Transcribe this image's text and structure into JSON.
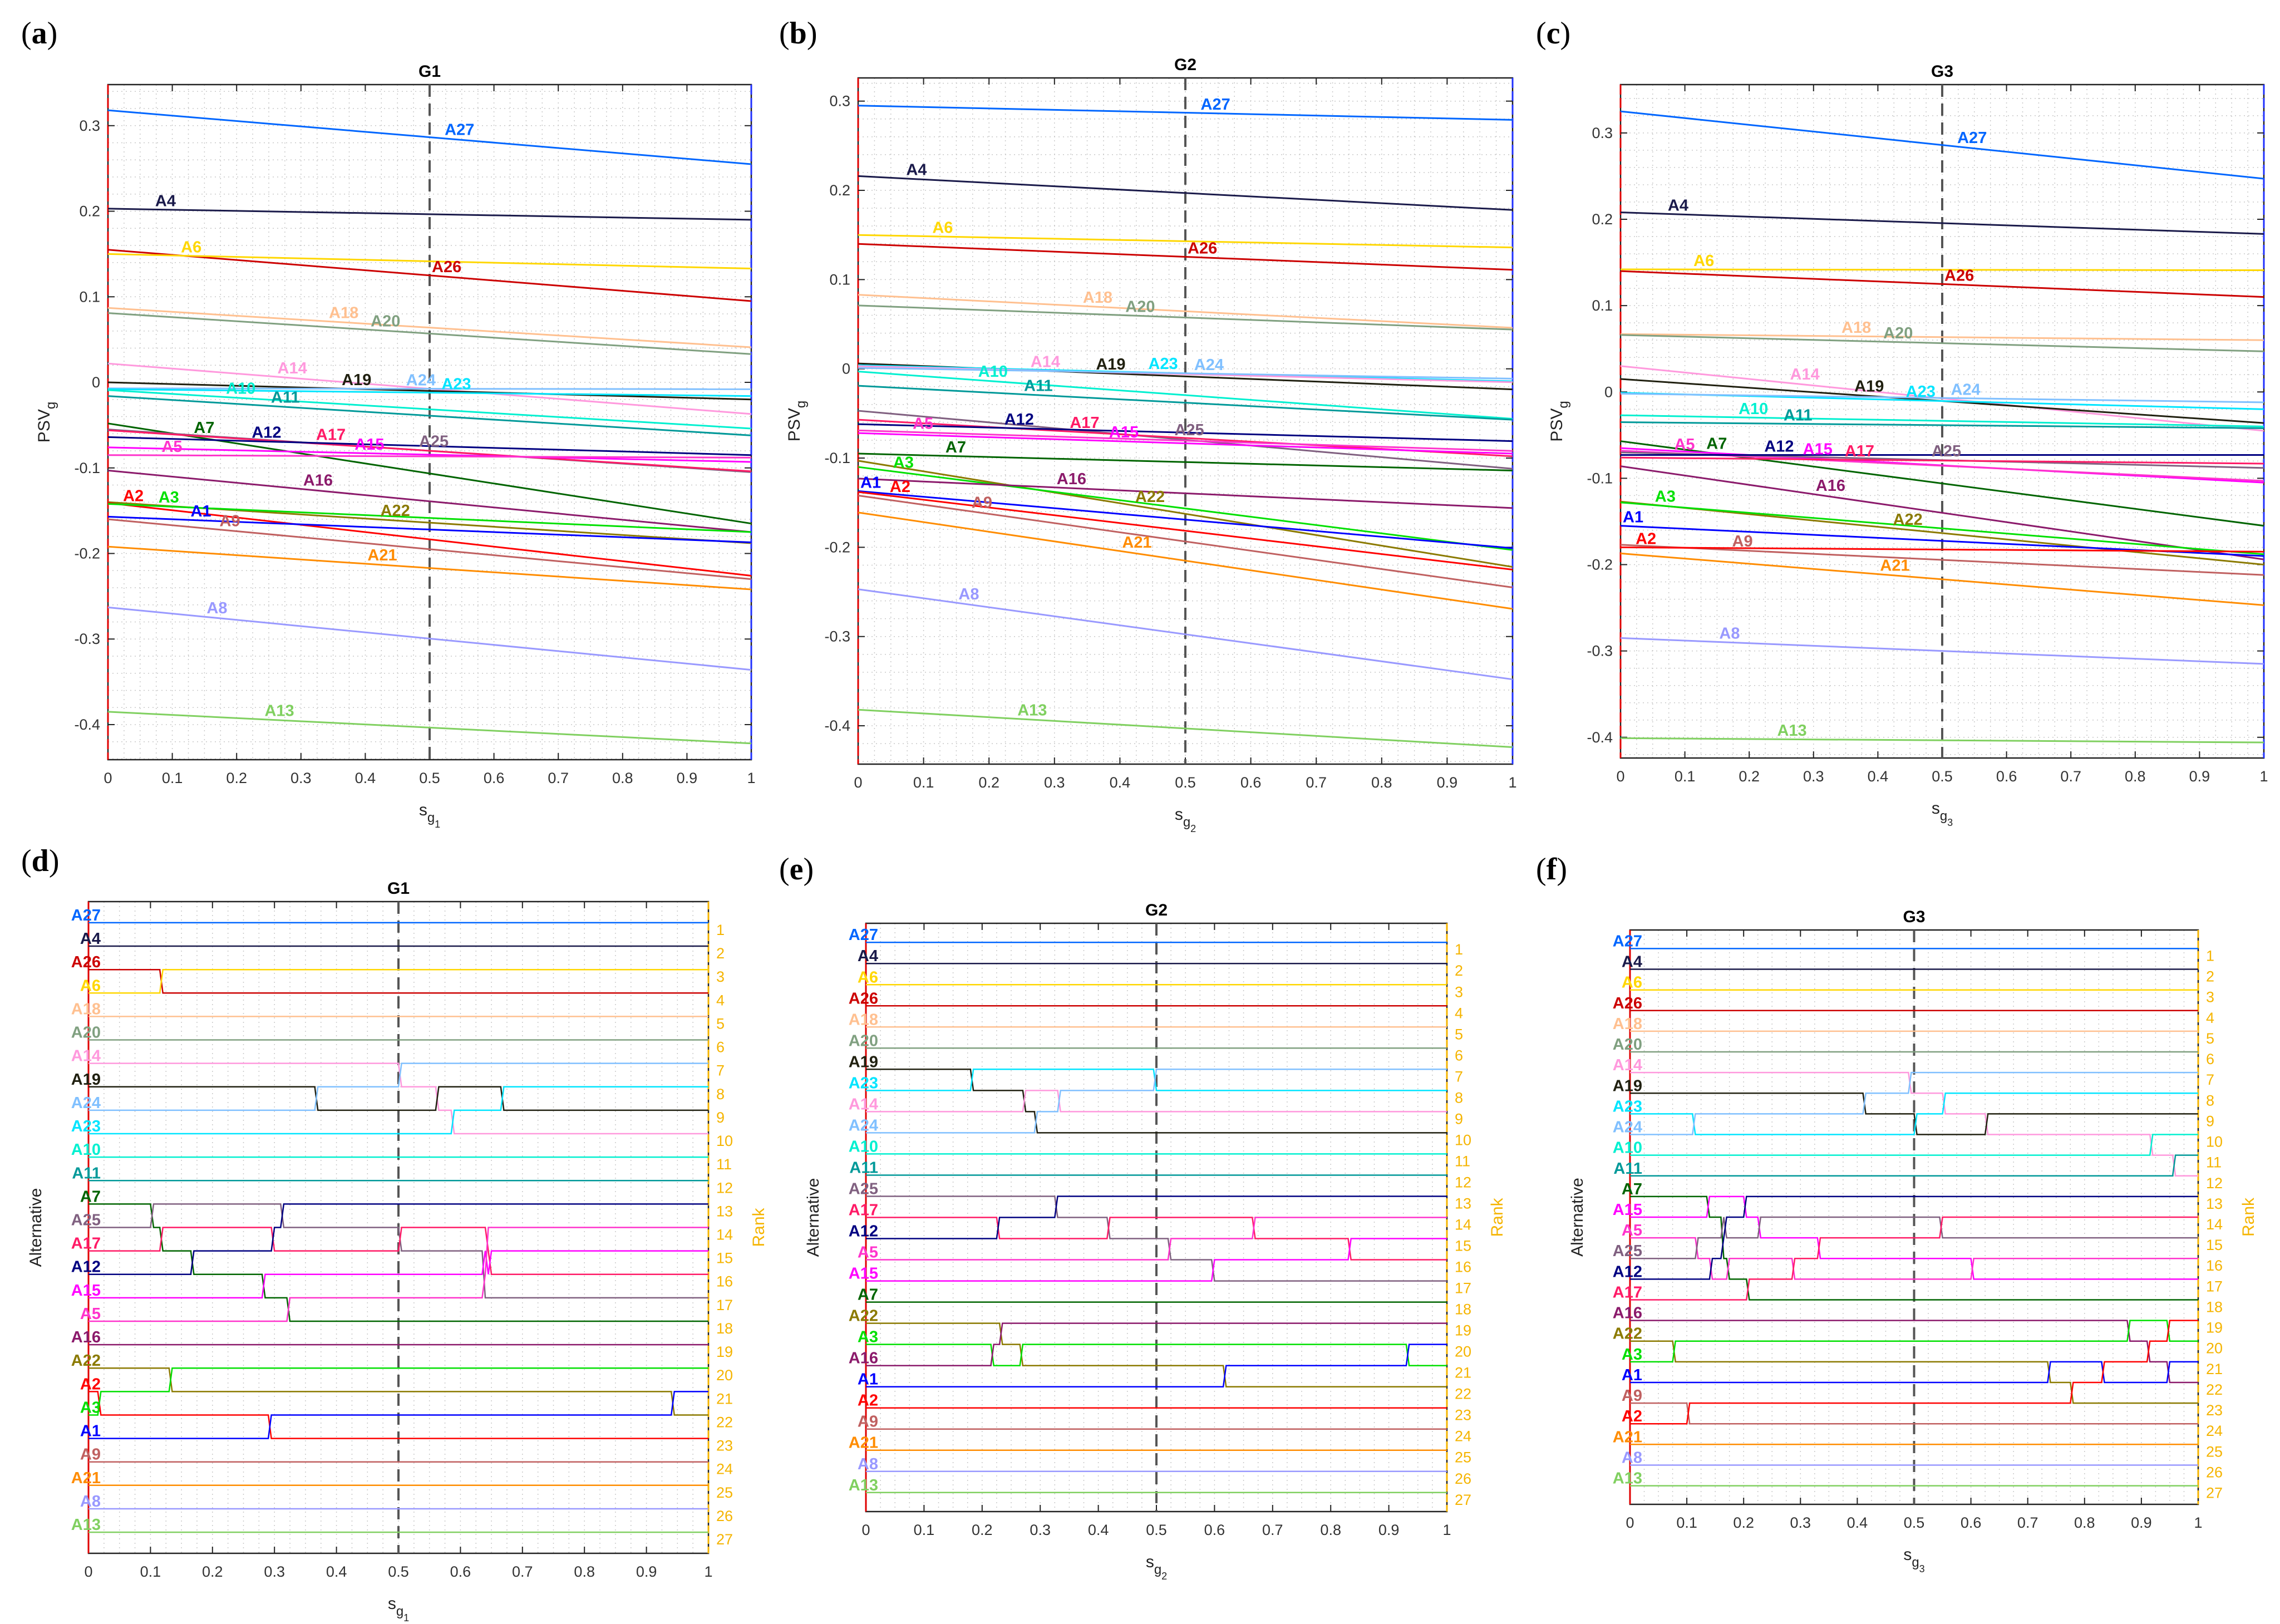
{
  "panel_labels": [
    {
      "open": "(",
      "letter": "a",
      "close": ")"
    },
    {
      "open": "(",
      "letter": "b",
      "close": ")"
    },
    {
      "open": "(",
      "letter": "c",
      "close": ")"
    },
    {
      "open": "(",
      "letter": "d",
      "close": ")"
    },
    {
      "open": "(",
      "letter": "e",
      "close": ")"
    },
    {
      "open": "(",
      "letter": "f",
      "close": ")"
    }
  ],
  "colors": {
    "A1": "#0000ff",
    "A2": "#ff0000",
    "A3": "#00e000",
    "A4": "#1a1a4a",
    "A5": "#ff33cc",
    "A6": "#ffd700",
    "A7": "#006400",
    "A8": "#9999ff",
    "A9": "#c06060",
    "A10": "#00f0d0",
    "A11": "#009999",
    "A12": "#000080",
    "A13": "#80d060",
    "A14": "#ff99dd",
    "A15": "#ff00ff",
    "A16": "#8b1a6b",
    "A17": "#ff1a66",
    "A18": "#ffc090",
    "A19": "#202010",
    "A20": "#80a080",
    "A21": "#ff8c00",
    "A22": "#8b7a00",
    "A23": "#00e5ff",
    "A24": "#80c0ff",
    "A25": "#806080",
    "A26": "#cc0000",
    "A27": "#0066ff",
    "reference_line": "#555555",
    "rank_axis": "#f5b400"
  },
  "chart_data": [
    {
      "type": "line",
      "title": "G1",
      "xlabel": {
        "base": "s",
        "sub": "g",
        "subsub": "1"
      },
      "ylabel": {
        "base": "PSV",
        "sub": "g"
      },
      "xlim": [
        0,
        1
      ],
      "ylim": [
        -0.441,
        0.348
      ],
      "reference_s": 0.5,
      "grid": true,
      "xticks": [
        "0",
        "0.1",
        "0.2",
        "0.3",
        "0.4",
        "0.5",
        "0.6",
        "0.7",
        "0.8",
        "0.9",
        "1"
      ],
      "yticks": [
        "-0.4",
        "-0.3",
        "-0.2",
        "-0.1",
        "0",
        "0.1",
        "0.2",
        "0.3"
      ],
      "x": [
        0,
        1
      ],
      "series": [
        {
          "name": "A27",
          "values": [
            0.318,
            0.255
          ],
          "label_s": 0.52
        },
        {
          "name": "A4",
          "values": [
            0.203,
            0.19
          ],
          "label_s": 0.07
        },
        {
          "name": "A26",
          "values": [
            0.155,
            0.095
          ],
          "label_s": 0.5
        },
        {
          "name": "A6",
          "values": [
            0.15,
            0.133
          ],
          "label_s": 0.11
        },
        {
          "name": "A18",
          "values": [
            0.087,
            0.041
          ],
          "label_s": 0.34
        },
        {
          "name": "A20",
          "values": [
            0.081,
            0.033
          ],
          "label_s": 0.38
        },
        {
          "name": "A14",
          "values": [
            0.022,
            -0.037
          ],
          "label_s": 0.26
        },
        {
          "name": "A19",
          "values": [
            0.0,
            -0.02
          ],
          "label_s": 0.36
        },
        {
          "name": "A24",
          "values": [
            -0.007,
            -0.008
          ],
          "label_s": 0.46
        },
        {
          "name": "A23",
          "values": [
            -0.008,
            -0.016
          ],
          "label_s": 0.44
        },
        {
          "name": "A10",
          "values": [
            -0.009,
            -0.054
          ],
          "label_s": 0.18
        },
        {
          "name": "A11",
          "values": [
            -0.016,
            -0.062
          ],
          "label_s": 0.2
        },
        {
          "name": "A7",
          "values": [
            -0.048,
            -0.165
          ],
          "label_s": 0.13
        },
        {
          "name": "A25",
          "values": [
            -0.055,
            -0.105
          ],
          "label_s": 0.48
        },
        {
          "name": "A17",
          "values": [
            -0.056,
            -0.104
          ],
          "label_s": 0.32
        },
        {
          "name": "A12",
          "values": [
            -0.064,
            -0.085
          ],
          "label_s": 0.22
        },
        {
          "name": "A15",
          "values": [
            -0.076,
            -0.093
          ],
          "label_s": 0.28
        },
        {
          "name": "A5",
          "values": [
            -0.085,
            -0.088
          ],
          "label_s": 0.08
        },
        {
          "name": "A16",
          "values": [
            -0.103,
            -0.175
          ],
          "label_s": 0.3
        },
        {
          "name": "A22",
          "values": [
            -0.14,
            -0.188
          ],
          "label_s": 0.42
        },
        {
          "name": "A2",
          "values": [
            -0.141,
            -0.226
          ],
          "label_s": 0.02
        },
        {
          "name": "A3",
          "values": [
            -0.142,
            -0.175
          ],
          "label_s": 0.05
        },
        {
          "name": "A1",
          "values": [
            -0.157,
            -0.187
          ],
          "label_s": 0.0
        },
        {
          "name": "A9",
          "values": [
            -0.16,
            -0.23
          ],
          "label_s": 0.17
        },
        {
          "name": "A21",
          "values": [
            -0.192,
            -0.242
          ],
          "label_s": 0.4
        },
        {
          "name": "A8",
          "values": [
            -0.263,
            -0.336
          ],
          "label_s": 0.15
        },
        {
          "name": "A13",
          "values": [
            -0.385,
            -0.422
          ],
          "label_s": 0.24
        }
      ]
    },
    {
      "type": "line",
      "title": "G2",
      "xlabel": {
        "base": "s",
        "sub": "g",
        "subsub": "2"
      },
      "ylabel": {
        "base": "PSV",
        "sub": "g"
      },
      "xlim": [
        0,
        1
      ],
      "ylim": [
        -0.443,
        0.326
      ],
      "reference_s": 0.5,
      "grid": true,
      "xticks": [
        "0",
        "0.1",
        "0.2",
        "0.3",
        "0.4",
        "0.5",
        "0.6",
        "0.7",
        "0.8",
        "0.9",
        "1"
      ],
      "yticks": [
        "-0.4",
        "-0.3",
        "-0.2",
        "-0.1",
        "0",
        "0.1",
        "0.2",
        "0.3"
      ],
      "x": [
        0,
        1
      ],
      "series": [
        {
          "name": "A27",
          "values": [
            0.295,
            0.279
          ],
          "label_s": 0.52
        },
        {
          "name": "A4",
          "values": [
            0.216,
            0.178
          ],
          "label_s": 0.07
        },
        {
          "name": "A6",
          "values": [
            0.15,
            0.136
          ],
          "label_s": 0.11
        },
        {
          "name": "A26",
          "values": [
            0.14,
            0.111
          ],
          "label_s": 0.5
        },
        {
          "name": "A18",
          "values": [
            0.083,
            0.046
          ],
          "label_s": 0.34
        },
        {
          "name": "A20",
          "values": [
            0.071,
            0.044
          ],
          "label_s": 0.38
        },
        {
          "name": "A19",
          "values": [
            0.006,
            -0.023
          ],
          "label_s": 0.36
        },
        {
          "name": "A23",
          "values": [
            0.004,
            -0.014
          ],
          "label_s": 0.44
        },
        {
          "name": "A14",
          "values": [
            0.003,
            -0.015
          ],
          "label_s": 0.26
        },
        {
          "name": "A24",
          "values": [
            0.001,
            -0.011
          ],
          "label_s": 0.46
        },
        {
          "name": "A10",
          "values": [
            -0.003,
            -0.056
          ],
          "label_s": 0.18
        },
        {
          "name": "A11",
          "values": [
            -0.019,
            -0.057
          ],
          "label_s": 0.2
        },
        {
          "name": "A25",
          "values": [
            -0.047,
            -0.112
          ],
          "label_s": 0.48
        },
        {
          "name": "A17",
          "values": [
            -0.057,
            -0.098
          ],
          "label_s": 0.32
        },
        {
          "name": "A12",
          "values": [
            -0.062,
            -0.081
          ],
          "label_s": 0.22
        },
        {
          "name": "A5",
          "values": [
            -0.069,
            -0.092
          ],
          "label_s": 0.08
        },
        {
          "name": "A15",
          "values": [
            -0.072,
            -0.095
          ],
          "label_s": 0.28
        },
        {
          "name": "A7",
          "values": [
            -0.095,
            -0.114
          ],
          "label_s": 0.13
        },
        {
          "name": "A22",
          "values": [
            -0.103,
            -0.222
          ],
          "label_s": 0.42
        },
        {
          "name": "A3",
          "values": [
            -0.11,
            -0.203
          ],
          "label_s": 0.05
        },
        {
          "name": "A16",
          "values": [
            -0.123,
            -0.156
          ],
          "label_s": 0.3
        },
        {
          "name": "A1",
          "values": [
            -0.137,
            -0.201
          ],
          "label_s": 0.0
        },
        {
          "name": "A2",
          "values": [
            -0.138,
            -0.225
          ],
          "label_s": 0.02
        },
        {
          "name": "A9",
          "values": [
            -0.142,
            -0.245
          ],
          "label_s": 0.17
        },
        {
          "name": "A21",
          "values": [
            -0.161,
            -0.269
          ],
          "label_s": 0.4
        },
        {
          "name": "A8",
          "values": [
            -0.247,
            -0.348
          ],
          "label_s": 0.15
        },
        {
          "name": "A13",
          "values": [
            -0.382,
            -0.424
          ],
          "label_s": 0.24
        }
      ]
    },
    {
      "type": "line",
      "title": "G3",
      "xlabel": {
        "base": "s",
        "sub": "g",
        "subsub": "3"
      },
      "ylabel": {
        "base": "PSV",
        "sub": "g"
      },
      "xlim": [
        0,
        1
      ],
      "ylim": [
        -0.424,
        0.356
      ],
      "reference_s": 0.5,
      "grid": true,
      "xticks": [
        "0",
        "0.1",
        "0.2",
        "0.3",
        "0.4",
        "0.5",
        "0.6",
        "0.7",
        "0.8",
        "0.9",
        "1"
      ],
      "yticks": [
        "-0.4",
        "-0.3",
        "-0.2",
        "-0.1",
        "0",
        "0.1",
        "0.2",
        "0.3"
      ],
      "x": [
        0,
        1
      ],
      "series": [
        {
          "name": "A27",
          "values": [
            0.325,
            0.247
          ],
          "label_s": 0.52
        },
        {
          "name": "A4",
          "values": [
            0.208,
            0.183
          ],
          "label_s": 0.07
        },
        {
          "name": "A6",
          "values": [
            0.142,
            0.141
          ],
          "label_s": 0.11
        },
        {
          "name": "A26",
          "values": [
            0.14,
            0.11
          ],
          "label_s": 0.5
        },
        {
          "name": "A18",
          "values": [
            0.067,
            0.06
          ],
          "label_s": 0.34
        },
        {
          "name": "A20",
          "values": [
            0.066,
            0.047
          ],
          "label_s": 0.38
        },
        {
          "name": "A14",
          "values": [
            0.03,
            -0.045
          ],
          "label_s": 0.26
        },
        {
          "name": "A19",
          "values": [
            0.015,
            -0.036
          ],
          "label_s": 0.36
        },
        {
          "name": "A23",
          "values": [
            -0.001,
            -0.02
          ],
          "label_s": 0.44
        },
        {
          "name": "A24",
          "values": [
            -0.002,
            -0.012
          ],
          "label_s": 0.46
        },
        {
          "name": "A10",
          "values": [
            -0.027,
            -0.04
          ],
          "label_s": 0.18
        },
        {
          "name": "A11",
          "values": [
            -0.035,
            -0.042
          ],
          "label_s": 0.2
        },
        {
          "name": "A7",
          "values": [
            -0.057,
            -0.155
          ],
          "label_s": 0.13
        },
        {
          "name": "A15",
          "values": [
            -0.065,
            -0.105
          ],
          "label_s": 0.28
        },
        {
          "name": "A5",
          "values": [
            -0.068,
            -0.103
          ],
          "label_s": 0.08
        },
        {
          "name": "A25",
          "values": [
            -0.07,
            -0.088
          ],
          "label_s": 0.48
        },
        {
          "name": "A12",
          "values": [
            -0.073,
            -0.073
          ],
          "label_s": 0.22
        },
        {
          "name": "A17",
          "values": [
            -0.076,
            -0.083
          ],
          "label_s": 0.32
        },
        {
          "name": "A16",
          "values": [
            -0.086,
            -0.194
          ],
          "label_s": 0.3
        },
        {
          "name": "A22",
          "values": [
            -0.127,
            -0.2
          ],
          "label_s": 0.42
        },
        {
          "name": "A3",
          "values": [
            -0.128,
            -0.188
          ],
          "label_s": 0.05
        },
        {
          "name": "A1",
          "values": [
            -0.155,
            -0.19
          ],
          "label_s": 0.0
        },
        {
          "name": "A9",
          "values": [
            -0.177,
            -0.212
          ],
          "label_s": 0.17
        },
        {
          "name": "A2",
          "values": [
            -0.18,
            -0.185
          ],
          "label_s": 0.02
        },
        {
          "name": "A21",
          "values": [
            -0.187,
            -0.247
          ],
          "label_s": 0.4
        },
        {
          "name": "A8",
          "values": [
            -0.285,
            -0.315
          ],
          "label_s": 0.15
        },
        {
          "name": "A13",
          "values": [
            -0.401,
            -0.406
          ],
          "label_s": 0.24
        }
      ]
    },
    {
      "type": "line",
      "subtype": "rank",
      "title": "G1",
      "source_chart": 0,
      "xlabel": {
        "base": "s",
        "sub": "g",
        "subsub": "1"
      },
      "ylabel_left": "Alternative",
      "ylabel_right": "Rank",
      "xlim": [
        0,
        1
      ],
      "ylim": [
        0.1,
        27.9
      ],
      "reference_s": 0.5,
      "grid": true,
      "xticks": [
        "0",
        "0.1",
        "0.2",
        "0.3",
        "0.4",
        "0.5",
        "0.6",
        "0.7",
        "0.8",
        "0.9",
        "1"
      ],
      "rank_ticks": [
        "1",
        "2",
        "3",
        "4",
        "5",
        "6",
        "7",
        "8",
        "9",
        "10",
        "11",
        "12",
        "13",
        "14",
        "15",
        "16",
        "17",
        "18",
        "19",
        "20",
        "21",
        "22",
        "23",
        "24",
        "25",
        "26",
        "27"
      ],
      "alternatives_order": [
        "A27",
        "A4",
        "A26",
        "A6",
        "A18",
        "A20",
        "A14",
        "A19",
        "A24",
        "A23",
        "A10",
        "A11",
        "A7",
        "A25",
        "A17",
        "A12",
        "A15",
        "A5",
        "A16",
        "A22",
        "A2",
        "A3",
        "A1",
        "A9",
        "A21",
        "A8",
        "A13"
      ]
    },
    {
      "type": "line",
      "subtype": "rank",
      "title": "G2",
      "source_chart": 1,
      "xlabel": {
        "base": "s",
        "sub": "g",
        "subsub": "2"
      },
      "ylabel_left": "Alternative",
      "ylabel_right": "Rank",
      "xlim": [
        0,
        1
      ],
      "ylim": [
        0.1,
        27.9
      ],
      "reference_s": 0.5,
      "grid": true,
      "xticks": [
        "0",
        "0.1",
        "0.2",
        "0.3",
        "0.4",
        "0.5",
        "0.6",
        "0.7",
        "0.8",
        "0.9",
        "1"
      ],
      "rank_ticks": [
        "1",
        "2",
        "3",
        "4",
        "5",
        "6",
        "7",
        "8",
        "9",
        "10",
        "11",
        "12",
        "13",
        "14",
        "15",
        "16",
        "17",
        "18",
        "19",
        "20",
        "21",
        "22",
        "23",
        "24",
        "25",
        "26",
        "27"
      ],
      "alternatives_order": [
        "A27",
        "A4",
        "A6",
        "A26",
        "A18",
        "A20",
        "A19",
        "A23",
        "A14",
        "A24",
        "A10",
        "A11",
        "A25",
        "A17",
        "A12",
        "A5",
        "A15",
        "A7",
        "A22",
        "A3",
        "A16",
        "A1",
        "A2",
        "A9",
        "A21",
        "A8",
        "A13"
      ]
    },
    {
      "type": "line",
      "subtype": "rank",
      "title": "G3",
      "source_chart": 2,
      "xlabel": {
        "base": "s",
        "sub": "g",
        "subsub": "3"
      },
      "ylabel_left": "Alternative",
      "ylabel_right": "Rank",
      "xlim": [
        0,
        1
      ],
      "ylim": [
        0.1,
        27.9
      ],
      "reference_s": 0.5,
      "grid": true,
      "xticks": [
        "0",
        "0.1",
        "0.2",
        "0.3",
        "0.4",
        "0.5",
        "0.6",
        "0.7",
        "0.8",
        "0.9",
        "1"
      ],
      "rank_ticks": [
        "1",
        "2",
        "3",
        "4",
        "5",
        "6",
        "7",
        "8",
        "9",
        "10",
        "11",
        "12",
        "13",
        "14",
        "15",
        "16",
        "17",
        "18",
        "19",
        "20",
        "21",
        "22",
        "23",
        "24",
        "25",
        "26",
        "27"
      ],
      "alternatives_order": [
        "A27",
        "A4",
        "A6",
        "A26",
        "A18",
        "A20",
        "A14",
        "A19",
        "A23",
        "A24",
        "A10",
        "A11",
        "A7",
        "A15",
        "A5",
        "A25",
        "A12",
        "A17",
        "A16",
        "A22",
        "A3",
        "A1",
        "A9",
        "A2",
        "A21",
        "A8",
        "A13"
      ]
    }
  ]
}
